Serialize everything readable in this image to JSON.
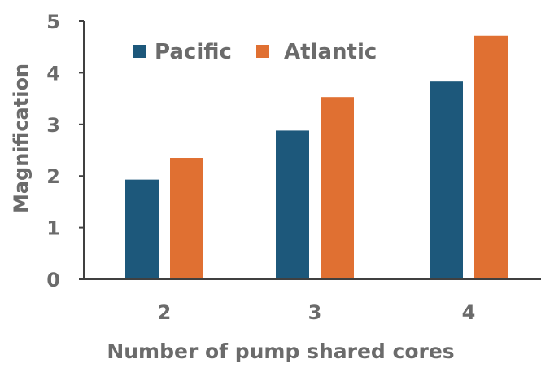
{
  "chart_data": {
    "type": "bar",
    "title": "",
    "xlabel": "Number of pump shared cores",
    "ylabel": "Magnification",
    "categories": [
      "2",
      "3",
      "4"
    ],
    "series": [
      {
        "name": "Pacific",
        "values": [
          1.93,
          2.88,
          3.83
        ]
      },
      {
        "name": "Atlantic",
        "values": [
          2.35,
          3.53,
          4.72
        ]
      }
    ],
    "ylim": [
      0,
      5
    ],
    "yticks": [
      "0",
      "1",
      "2",
      "3",
      "4",
      "5"
    ],
    "grid": false,
    "legend_position": "top-left"
  },
  "colors": {
    "series": [
      "#1d587b",
      "#e07032"
    ],
    "axis": "#404040",
    "text": "#6b6b6b"
  }
}
